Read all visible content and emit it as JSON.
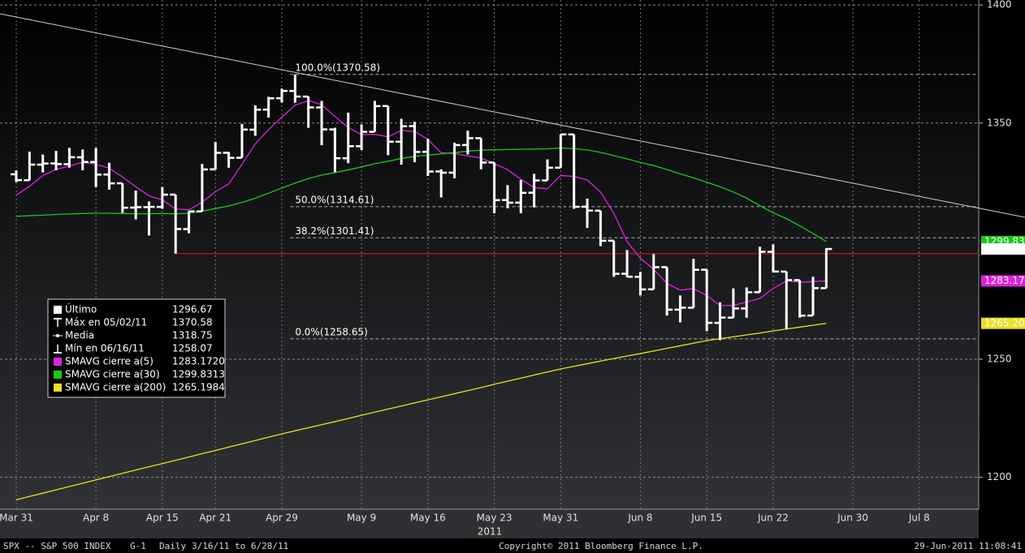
{
  "chart_data": {
    "type": "ohlc",
    "security": "SPX -- S&P 500 INDEX",
    "page_code": "G-1",
    "period": "Daily",
    "date_range": "3/16/11 to 6/28/11",
    "copyright": "Copyright© 2011 Bloomberg Finance L.P.",
    "timestamp": "29-Jun-2011 11:08:41",
    "x_year": "2011",
    "categories": [
      "Mar 31",
      null,
      null,
      null,
      null,
      null,
      "Apr 8",
      null,
      null,
      null,
      null,
      "Apr 15",
      null,
      null,
      null,
      "Apr 21",
      null,
      null,
      null,
      null,
      "Apr 29",
      null,
      null,
      null,
      null,
      null,
      "May 9",
      null,
      null,
      null,
      null,
      "May 16",
      null,
      null,
      null,
      null,
      "May 23",
      null,
      null,
      null,
      null,
      "May 31",
      null,
      null,
      null,
      null,
      null,
      "Jun 8",
      null,
      null,
      null,
      null,
      "Jun 15",
      null,
      null,
      null,
      null,
      "Jun 22",
      null,
      null,
      null,
      null,
      null,
      "Jun 30",
      null,
      null,
      null,
      null,
      "Jul 8",
      null,
      null,
      null,
      null
    ],
    "open": [
      1328.3,
      1325.8,
      1332.4,
      1332.9,
      1332.6,
      1335.5,
      1333.5,
      1328.2,
      1324.5,
      1314.2,
      1314.4,
      1314.5,
      1319.7,
      1305.1,
      1312.6,
      1330.4,
      1337.4,
      1335.3,
      1347.2,
      1355.7,
      1360.5,
      1363.6,
      1361.2,
      1356.6,
      1347.3,
      1335.1,
      1340.2,
      1346.3,
      1357.2,
      1342.1,
      1348.7,
      1337.8,
      1329.5,
      1329.0,
      1340.7,
      1343.6,
      1333.3,
      1317.4,
      1316.3,
      1320.5,
      1325.7,
      1331.1,
      1345.2,
      1314.6,
      1312.9,
      1300.2,
      1286.2,
      1284.9,
      1279.6,
      1289.0,
      1271.0,
      1271.8,
      1287.9,
      1265.4,
      1267.6,
      1271.5,
      1278.4,
      1295.5,
      1287.1,
      1283.5,
      1268.5,
      1280.1,
      null,
      null,
      null,
      null,
      null,
      null,
      null,
      null,
      null,
      null,
      null
    ],
    "high": [
      1330,
      1337.9,
      1336.7,
      1338.2,
      1339.5,
      1338.8,
      1339.5,
      1333.2,
      1324.5,
      1321.4,
      1316.8,
      1322.9,
      1319.7,
      1312.7,
      1332.7,
      1342.0,
      1337.8,
      1349.6,
      1357.5,
      1361.1,
      1364.6,
      1370.58,
      1361.2,
      1359.4,
      1348.0,
      1354.4,
      1349.4,
      1359.4,
      1357.2,
      1351.8,
      1350.5,
      1343.3,
      1330.4,
      1341.7,
      1346.8,
      1343.6,
      1333.3,
      1323.7,
      1325.9,
      1328.5,
      1334.6,
      1345.2,
      1345.2,
      1318.0,
      1312.9,
      1300.2,
      1296.2,
      1287.0,
      1294.5,
      1289.0,
      1277.0,
      1292.5,
      1288.0,
      1274.1,
      1280.0,
      1280.4,
      1297.6,
      1298.6,
      1287.1,
      1283.5,
      1284.9,
      1297.0,
      null,
      null,
      null,
      null,
      null,
      null,
      null,
      null,
      null,
      null,
      null
    ],
    "low": [
      1325.0,
      1325.8,
      1329.1,
      1330.0,
      1331.1,
      1330.0,
      1322.9,
      1321.8,
      1312.0,
      1309.2,
      1302.4,
      1313.7,
      1294.7,
      1303.3,
      1312.6,
      1330.4,
      1331.1,
      1335.3,
      1344.6,
      1352.3,
      1358.7,
      1358.6,
      1348.0,
      1340.6,
      1329.2,
      1333.0,
      1338.6,
      1346.3,
      1336.4,
      1332.4,
      1333.4,
      1327.6,
      1318.5,
      1326.6,
      1336.7,
      1330.4,
      1311.8,
      1313.9,
      1311.8,
      1314.3,
      1325.7,
      1331.1,
      1313.7,
      1305.6,
      1297.9,
      1284.9,
      1284.7,
      1277.0,
      1279.6,
      1268.5,
      1265.6,
      1271.8,
      1261.9,
      1258.07,
      1267.6,
      1267.6,
      1278.4,
      1286.8,
      1262.9,
      1267.6,
      1268.5,
      1280.1,
      null,
      null,
      null,
      null,
      null,
      null,
      null,
      null,
      null,
      null,
      null
    ],
    "close": [
      1325.83,
      1332.41,
      1332.87,
      1332.63,
      1335.54,
      1333.51,
      1328.17,
      1324.46,
      1314.16,
      1314.41,
      1314.52,
      1319.68,
      1305.14,
      1312.62,
      1330.36,
      1337.38,
      1335.25,
      1347.24,
      1355.66,
      1360.48,
      1363.61,
      1361.22,
      1356.62,
      1347.32,
      1335.1,
      1340.2,
      1346.29,
      1357.16,
      1342.08,
      1348.65,
      1337.77,
      1329.47,
      1328.98,
      1340.68,
      1343.6,
      1333.27,
      1317.37,
      1316.28,
      1320.47,
      1325.69,
      1331.1,
      1345.2,
      1314.55,
      1312.94,
      1300.16,
      1286.17,
      1284.94,
      1279.56,
      1289.0,
      1270.98,
      1271.83,
      1287.87,
      1265.42,
      1267.64,
      1271.5,
      1278.36,
      1295.52,
      1287.14,
      1283.5,
      1268.45,
      1280.1,
      1296.67,
      null,
      null,
      null,
      null,
      null,
      null,
      null,
      null,
      null,
      null,
      null
    ],
    "close_last_label": "1296.67",
    "bar_color": "#ffffff",
    "series": [
      {
        "name": "SMAVG cierre a(5)",
        "color": "#e020e0",
        "legend_value": "1283.1720",
        "last_label": "1283.17",
        "values": [
          1319.5,
          1323.2,
          1327.8,
          1330.4,
          1331.8,
          1333.4,
          1332.5,
          1330.9,
          1327.2,
          1323.0,
          1319.2,
          1317.5,
          1313.6,
          1313.3,
          1316.5,
          1321.0,
          1324.2,
          1332.6,
          1341.2,
          1347.2,
          1352.5,
          1357.6,
          1359.5,
          1357.8,
          1352.8,
          1348.1,
          1345.1,
          1345.2,
          1344.2,
          1346.9,
          1346.4,
          1343.1,
          1337.4,
          1337.1,
          1336.1,
          1335.2,
          1332.8,
          1330.3,
          1326.2,
          1322.6,
          1322.2,
          1327.8,
          1327.4,
          1325.9,
          1320.8,
          1311.8,
          1299.8,
          1292.8,
          1288.0,
          1282.1,
          1279.3,
          1279.9,
          1277.0,
          1272.7,
          1272.8,
          1274.2,
          1275.7,
          1280.0,
          1283.2,
          1282.6,
          1282.9,
          1283.17,
          null,
          null,
          null,
          null,
          null,
          null,
          null,
          null,
          null,
          null,
          null
        ]
      },
      {
        "name": "SMAVG cierre a(30)",
        "color": "#18c818",
        "legend_value": "1299.8313",
        "last_label": "1299.83",
        "values": [
          1310.5,
          1310.8,
          1311.0,
          1311.3,
          1311.5,
          1311.7,
          1311.8,
          1311.8,
          1311.7,
          1311.6,
          1311.6,
          1311.7,
          1311.6,
          1311.8,
          1312.7,
          1313.8,
          1314.9,
          1316.4,
          1318.2,
          1320.3,
          1322.5,
          1324.6,
          1326.5,
          1328.0,
          1329.0,
          1330.2,
          1331.4,
          1332.8,
          1333.8,
          1335.0,
          1335.9,
          1336.4,
          1336.9,
          1337.5,
          1338.1,
          1338.5,
          1338.7,
          1338.8,
          1338.9,
          1339.0,
          1339.1,
          1339.4,
          1339.2,
          1338.6,
          1337.6,
          1336.2,
          1334.8,
          1333.3,
          1332.0,
          1330.3,
          1328.5,
          1326.8,
          1325.0,
          1323.0,
          1320.8,
          1318.2,
          1315.0,
          1312.0,
          1309.5,
          1306.5,
          1303.2,
          1299.83,
          null,
          null,
          null,
          null,
          null,
          null,
          null,
          null,
          null,
          null,
          null
        ]
      },
      {
        "name": "SMAVG cierre a(200)",
        "color": "#e8e020",
        "legend_value": "1265.1984",
        "last_label": "1265.20",
        "values": [
          1190.5,
          1191.9,
          1193.3,
          1194.7,
          1196.1,
          1197.5,
          1198.9,
          1200.3,
          1201.7,
          1203.1,
          1204.5,
          1205.8,
          1207.2,
          1208.6,
          1210.0,
          1211.4,
          1212.8,
          1214.2,
          1215.6,
          1217.0,
          1218.4,
          1219.7,
          1221.0,
          1222.3,
          1223.6,
          1224.9,
          1226.3,
          1227.6,
          1228.9,
          1230.2,
          1231.5,
          1232.8,
          1234.1,
          1235.4,
          1236.7,
          1238.0,
          1239.4,
          1240.7,
          1242.0,
          1243.3,
          1244.6,
          1245.9,
          1247.0,
          1248.1,
          1249.2,
          1250.3,
          1251.4,
          1252.4,
          1253.5,
          1254.6,
          1255.7,
          1256.8,
          1257.9,
          1258.7,
          1259.5,
          1260.3,
          1261.1,
          1262.0,
          1262.8,
          1263.6,
          1264.4,
          1265.2,
          null,
          null,
          null,
          null,
          null,
          null,
          null,
          null,
          null,
          null,
          null
        ]
      }
    ],
    "stats": [
      {
        "label": "Último",
        "value": "1296.67"
      },
      {
        "label": "Máx en 05/02/11",
        "value": "1370.58"
      },
      {
        "label": "Media",
        "value": "1318.75"
      },
      {
        "label": "Mín en 06/16/11",
        "value": "1258.07"
      }
    ],
    "fib_levels": [
      {
        "value": 1370.58,
        "label": "100.0%(1370.58)"
      },
      {
        "value": 1314.61,
        "label": "50.0%(1314.61)"
      },
      {
        "value": 1301.41,
        "label": "38.2%(1301.41)"
      },
      {
        "value": 1258.65,
        "label": "0.0%(1258.65)"
      }
    ],
    "support_line": {
      "value": 1294.7,
      "color": "#e01010"
    },
    "trend_line": {
      "values": [
        1394.9,
        1314.5
      ],
      "color": "#d0d0d0"
    },
    "ylim": [
      1186.5,
      1402.1
    ],
    "yticks": [
      1200,
      1250,
      1350,
      1400
    ],
    "grid": true
  }
}
